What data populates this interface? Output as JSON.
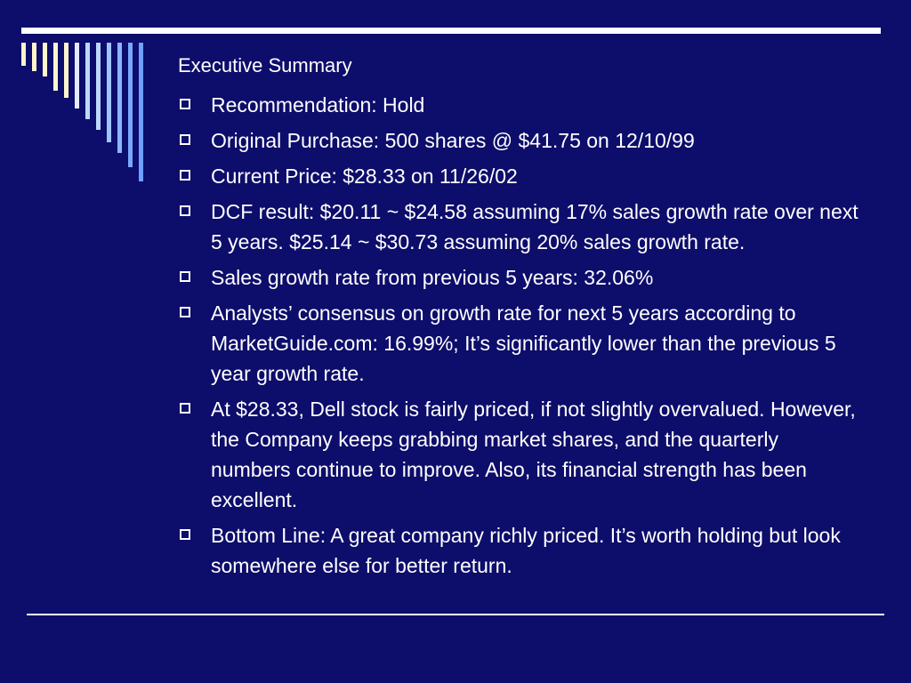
{
  "slide": {
    "title": "Executive Summary",
    "bullets": [
      "Recommendation: Hold",
      "Original Purchase: 500 shares @ $41.75 on 12/10/99",
      "Current Price: $28.33 on 11/26/02",
      "DCF result: $20.11 ~ $24.58 assuming 17% sales growth rate over next 5 years. $25.14 ~ $30.73 assuming 20% sales growth rate.",
      "Sales growth rate from previous 5 years:  32.06%",
      "Analysts’ consensus on growth rate for next 5 years according to MarketGuide.com: 16.99%; It’s significantly lower than the previous 5 year growth rate.",
      "At $28.33, Dell stock is fairly priced, if not slightly overvalued.  However, the Company keeps grabbing market shares, and the quarterly numbers continue to improve.  Also, its financial strength has been excellent.",
      "Bottom Line: A great company richly priced.  It’s worth holding but look somewhere else  for better return."
    ]
  },
  "colors": {
    "background": "#0d0d6b",
    "text": "#ffffff",
    "stripe_light": "#fff5cc",
    "stripe_mid": "#bcd8ff",
    "stripe_dark": "#6fa0ff"
  }
}
